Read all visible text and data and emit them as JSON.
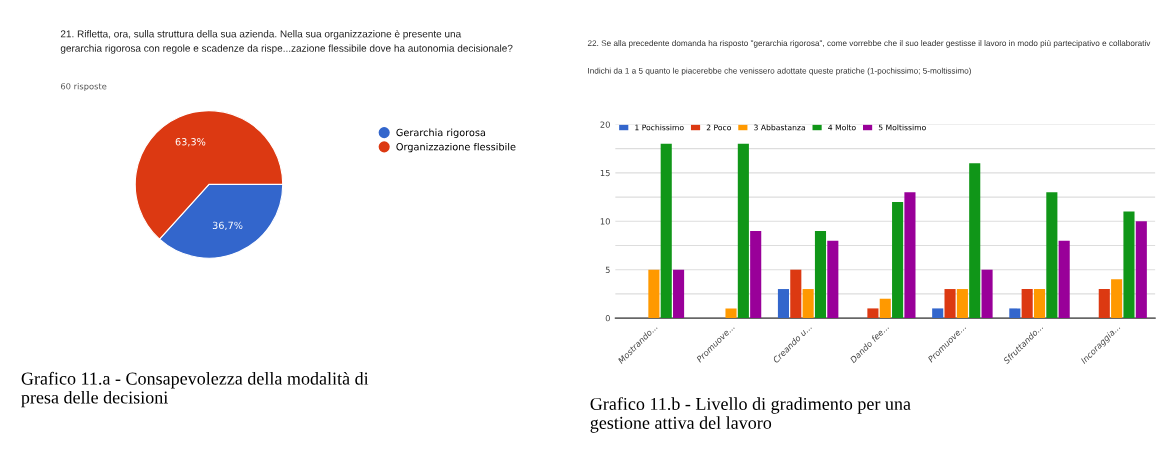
{
  "chart_data": [
    {
      "type": "pie",
      "title": "21. Rifletta, ora, sulla struttura della sua azienda. Nella sua organizzazione è presente una\ngerarchia rigorosa con regole e scadenze da rispe...zazione flessibile dove ha autonomia decisionale?",
      "subtitle": "60 risposte",
      "categories": [
        "Gerarchia rigorosa",
        "Organizzazione flessibile"
      ],
      "values": [
        36.7,
        63.3
      ],
      "colors": [
        "#3366cc",
        "#dc3912"
      ],
      "value_labels": [
        "36,7%",
        "63,3%"
      ],
      "legend": "right",
      "annotations": [
        "Grafico 11.a - Consapevolezza della modalità di\npresa delle decisioni"
      ]
    },
    {
      "type": "bar",
      "title": "22. Se alla precedente domanda ha risposto \"gerarchia rigorosa\", come vorrebbe che il suo leader gestisse il lavoro in modo più partecipativo e collaborativ",
      "subtitle": "Indichi da 1 a 5 quanto le piacerebbe che venissero adottate queste pratiche (1-pochissimo; 5-moltissimo)",
      "categories": [
        "Mostrando...",
        "Promuove...",
        "Creando u...",
        "Dando fee...",
        "Promuove...",
        "Sfruttando...",
        "Incoraggia..."
      ],
      "series": [
        {
          "name": "1 Pochissimo",
          "color": "#3366cc",
          "values": [
            0,
            0,
            3,
            0,
            1,
            1,
            0
          ]
        },
        {
          "name": "2 Poco",
          "color": "#dc3912",
          "values": [
            0,
            0,
            5,
            1,
            3,
            3,
            3
          ]
        },
        {
          "name": "3 Abbastanza",
          "color": "#ff9900",
          "values": [
            5,
            1,
            3,
            2,
            3,
            3,
            4
          ]
        },
        {
          "name": "4 Molto",
          "color": "#109618",
          "values": [
            18,
            18,
            9,
            12,
            16,
            13,
            11
          ]
        },
        {
          "name": "5 Moltissimo",
          "color": "#990099",
          "values": [
            5,
            9,
            8,
            13,
            5,
            8,
            10
          ]
        }
      ],
      "ylim": [
        0,
        20
      ],
      "yticks": [
        0,
        {
          "value": 2.5,
          "label": null
        },
        5,
        {
          "value": 7.5,
          "label": null
        },
        10,
        {
          "value": 12.5,
          "label": null
        },
        15,
        {
          "value": 17.5,
          "label": null
        },
        20
      ],
      "grid": "y",
      "legend": "top left",
      "annotations": [
        "Grafico 11.b - Livello di gradimento per una\ngestione attiva del lavoro"
      ]
    }
  ]
}
